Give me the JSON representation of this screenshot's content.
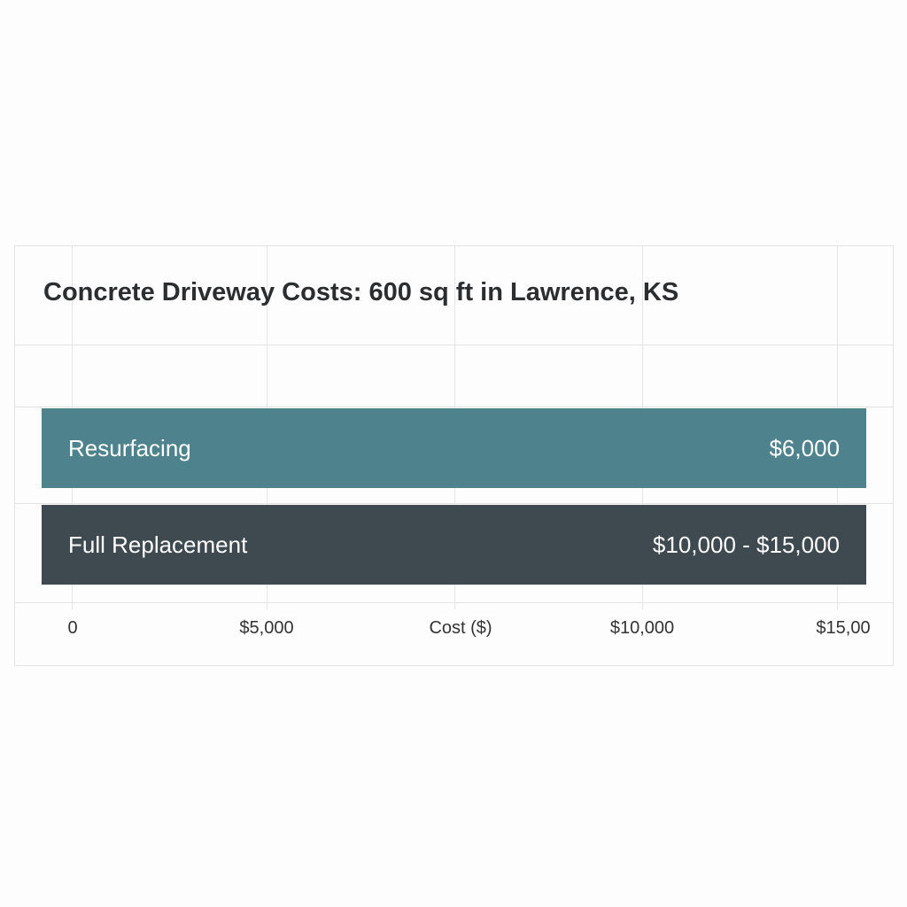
{
  "chart_data": {
    "type": "bar",
    "orientation": "horizontal",
    "title": "Concrete Driveway Costs: 600 sq ft in Lawrence, KS",
    "xlabel": "Cost ($)",
    "xlim": [
      0,
      15000
    ],
    "grid": true,
    "categories": [
      "Resurfacing",
      "Full Replacement"
    ],
    "values": [
      6000,
      [
        10000,
        15000
      ]
    ],
    "data_labels": [
      "$6,000",
      "$10,000 - $15,000"
    ],
    "colors": [
      "#4e838e",
      "#3e4950"
    ],
    "x_ticks": [
      "0",
      "$5,000",
      "Cost ($)",
      "$10,000",
      "$15,00"
    ]
  }
}
